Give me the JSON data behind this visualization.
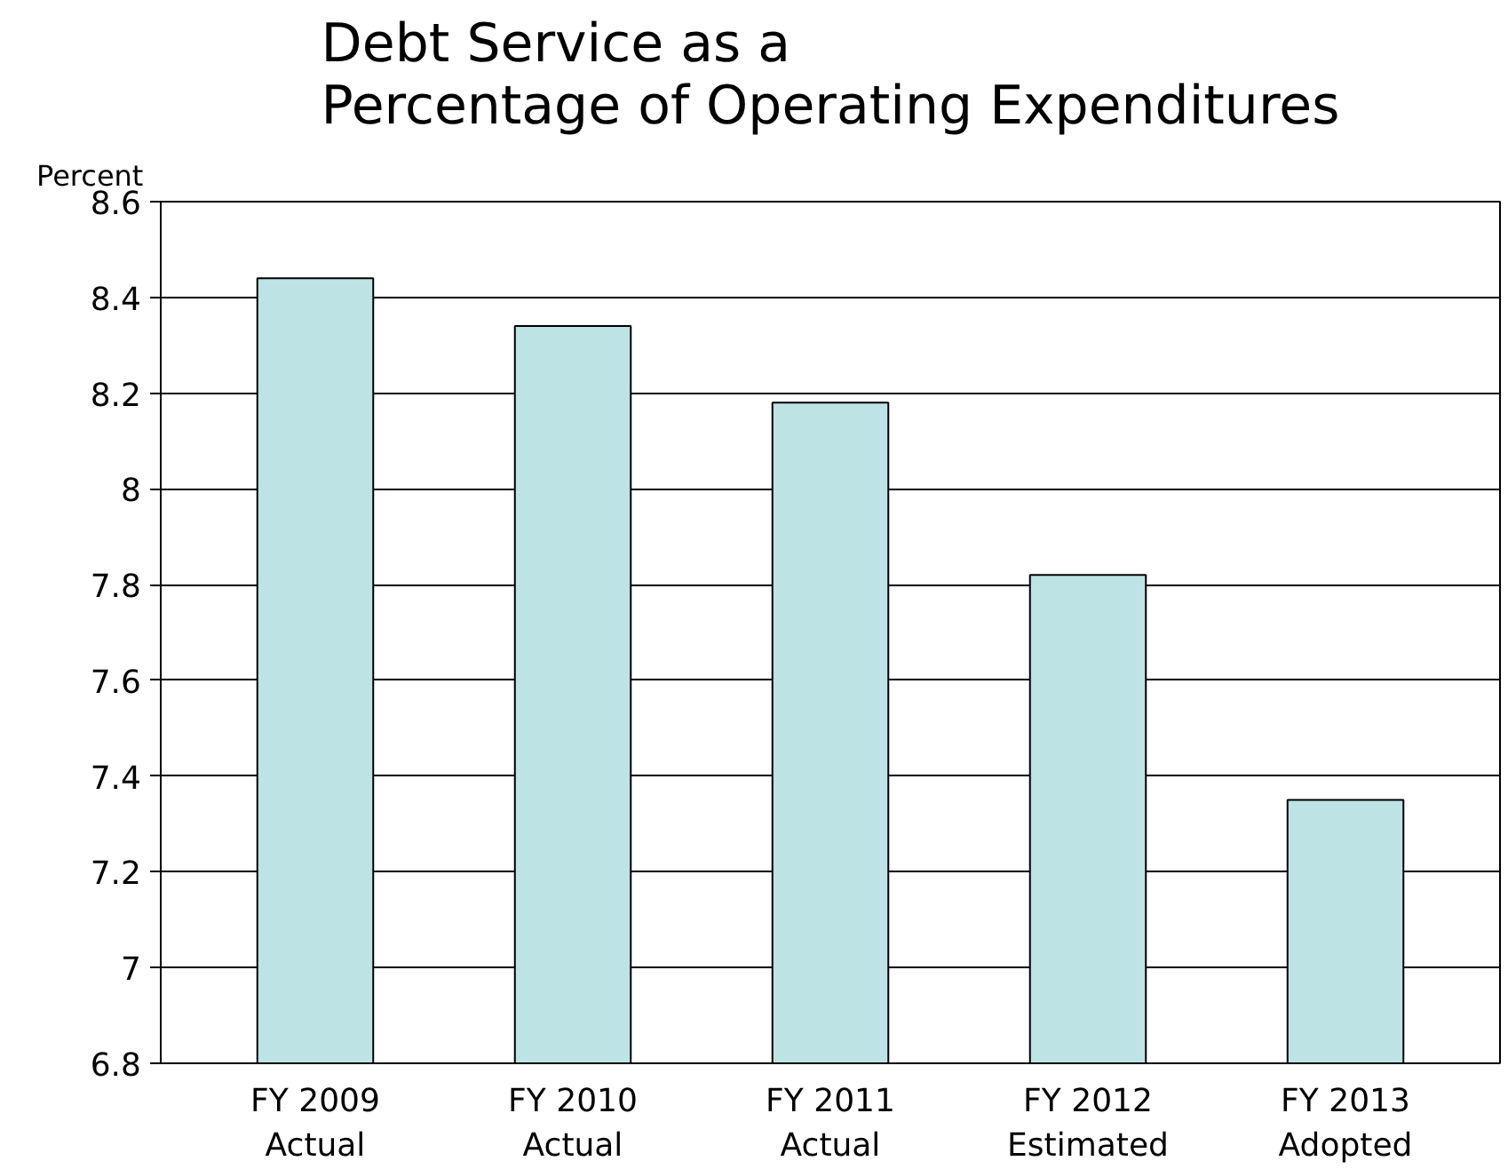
{
  "chart_data": {
    "type": "bar",
    "title": "Debt Service as a\nPercentage of Operating Expenditures",
    "ylabel": "Percent",
    "categories": [
      "FY 2009\nActual",
      "FY 2010\nActual",
      "FY 2011\nActual",
      "FY 2012\nEstimated",
      "FY 2013\nAdopted"
    ],
    "values": [
      8.44,
      8.34,
      8.18,
      7.82,
      7.35
    ],
    "color": "#bde3e4",
    "ylim": [
      6.8,
      8.6
    ],
    "yticks": [
      6.8,
      7,
      7.2,
      7.4,
      7.6,
      7.8,
      8,
      8.2,
      8.4,
      8.6
    ],
    "grid": "y"
  }
}
